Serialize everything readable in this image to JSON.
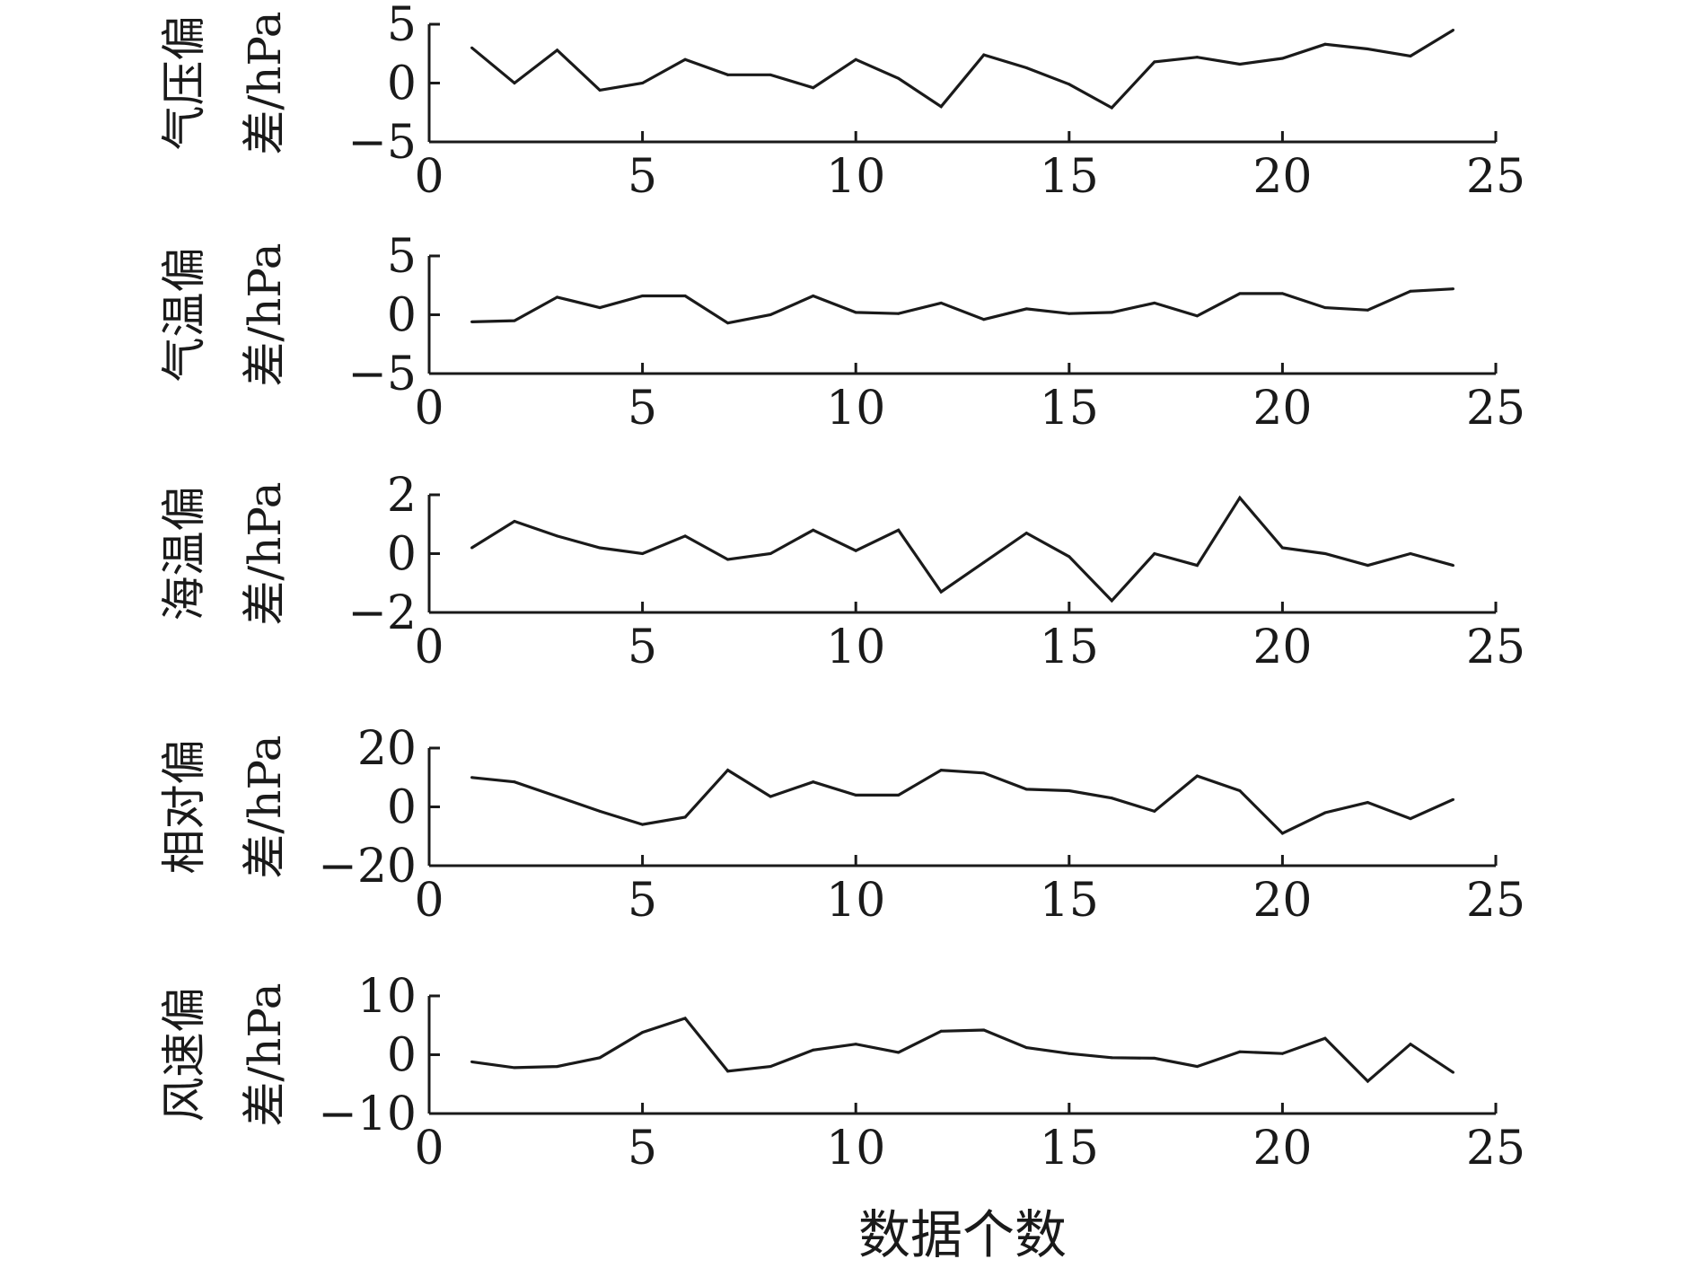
{
  "chart_data": [
    {
      "type": "line",
      "ylabel_lines": [
        "气压偏",
        "差/hPa"
      ],
      "xlabel": "",
      "x": [
        1,
        2,
        3,
        4,
        5,
        6,
        7,
        8,
        9,
        10,
        11,
        12,
        13,
        14,
        15,
        16,
        17,
        18,
        19,
        20,
        21,
        22,
        23,
        24
      ],
      "series": [
        {
          "values": [
            3.0,
            0.0,
            2.8,
            -0.6,
            0.0,
            2.0,
            0.7,
            0.7,
            -0.4,
            2.0,
            0.4,
            -2.0,
            2.4,
            1.3,
            -0.1,
            -2.1,
            1.8,
            2.2,
            1.6,
            2.1,
            3.3,
            2.9,
            2.3,
            4.5
          ]
        }
      ],
      "xlim": [
        0,
        25
      ],
      "ylim": [
        -5,
        5
      ],
      "xticks": [
        "0",
        "5",
        "10",
        "15",
        "20",
        "25"
      ],
      "yticks": [
        "5",
        "0",
        "−5"
      ],
      "grid": false,
      "line_color": "#1a1a1a"
    },
    {
      "type": "line",
      "ylabel_lines": [
        "气温偏",
        "差/hPa"
      ],
      "xlabel": "",
      "x": [
        1,
        2,
        3,
        4,
        5,
        6,
        7,
        8,
        9,
        10,
        11,
        12,
        13,
        14,
        15,
        16,
        17,
        18,
        19,
        20,
        21,
        22,
        23,
        24
      ],
      "series": [
        {
          "values": [
            -0.6,
            -0.5,
            1.5,
            0.6,
            1.6,
            1.6,
            -0.7,
            0.0,
            1.6,
            0.2,
            0.1,
            1.0,
            -0.4,
            0.5,
            0.1,
            0.2,
            1.0,
            -0.1,
            1.8,
            1.8,
            0.6,
            0.4,
            2.0,
            2.2
          ]
        }
      ],
      "xlim": [
        0,
        25
      ],
      "ylim": [
        -5,
        5
      ],
      "xticks": [
        "0",
        "5",
        "10",
        "15",
        "20",
        "25"
      ],
      "yticks": [
        "5",
        "0",
        "−5"
      ],
      "grid": false,
      "line_color": "#1a1a1a"
    },
    {
      "type": "line",
      "ylabel_lines": [
        "海温偏",
        "差/hPa"
      ],
      "xlabel": "",
      "x": [
        1,
        2,
        3,
        4,
        5,
        6,
        7,
        8,
        9,
        10,
        11,
        12,
        13,
        14,
        15,
        16,
        17,
        18,
        19,
        20,
        21,
        22,
        23,
        24
      ],
      "series": [
        {
          "values": [
            0.2,
            1.1,
            0.6,
            0.2,
            0.0,
            0.6,
            -0.2,
            0.0,
            0.8,
            0.1,
            0.8,
            -1.3,
            -0.3,
            0.7,
            -0.1,
            -1.6,
            0.0,
            -0.4,
            1.9,
            0.2,
            0.0,
            -0.4,
            0.0,
            -0.4
          ]
        }
      ],
      "xlim": [
        0,
        25
      ],
      "ylim": [
        -2,
        2
      ],
      "xticks": [
        "0",
        "5",
        "10",
        "15",
        "20",
        "25"
      ],
      "yticks": [
        "2",
        "0",
        "−2"
      ],
      "grid": false,
      "line_color": "#1a1a1a"
    },
    {
      "type": "line",
      "ylabel_lines": [
        "相对偏",
        "差/hPa"
      ],
      "xlabel": "",
      "x": [
        1,
        2,
        3,
        4,
        5,
        6,
        7,
        8,
        9,
        10,
        11,
        12,
        13,
        14,
        15,
        16,
        17,
        18,
        19,
        20,
        21,
        22,
        23,
        24
      ],
      "series": [
        {
          "values": [
            10.0,
            8.5,
            3.5,
            -1.5,
            -6.0,
            -3.5,
            12.5,
            3.5,
            8.5,
            4.0,
            4.0,
            12.5,
            11.5,
            6.0,
            5.5,
            3.0,
            -1.5,
            10.5,
            5.5,
            -9.0,
            -2.0,
            1.5,
            -4.0,
            2.5
          ]
        }
      ],
      "xlim": [
        0,
        25
      ],
      "ylim": [
        -20,
        20
      ],
      "xticks": [
        "0",
        "5",
        "10",
        "15",
        "20",
        "25"
      ],
      "yticks": [
        "20",
        "0",
        "−20"
      ],
      "grid": false,
      "line_color": "#1a1a1a"
    },
    {
      "type": "line",
      "ylabel_lines": [
        "风速偏",
        "差/hPa"
      ],
      "xlabel": "数据个数",
      "x": [
        1,
        2,
        3,
        4,
        5,
        6,
        7,
        8,
        9,
        10,
        11,
        12,
        13,
        14,
        15,
        16,
        17,
        18,
        19,
        20,
        21,
        22,
        23,
        24
      ],
      "series": [
        {
          "values": [
            -1.2,
            -2.2,
            -2.0,
            -0.5,
            3.8,
            6.2,
            -2.8,
            -2.0,
            0.8,
            1.8,
            0.4,
            4.0,
            4.2,
            1.2,
            0.2,
            -0.5,
            -0.6,
            -2.0,
            0.5,
            0.2,
            2.8,
            -4.5,
            1.8,
            -3.0
          ]
        }
      ],
      "xlim": [
        0,
        25
      ],
      "ylim": [
        -10,
        10
      ],
      "xticks": [
        "0",
        "5",
        "10",
        "15",
        "20",
        "25"
      ],
      "yticks": [
        "10",
        "0",
        "−10"
      ],
      "grid": false,
      "line_color": "#1a1a1a"
    }
  ]
}
